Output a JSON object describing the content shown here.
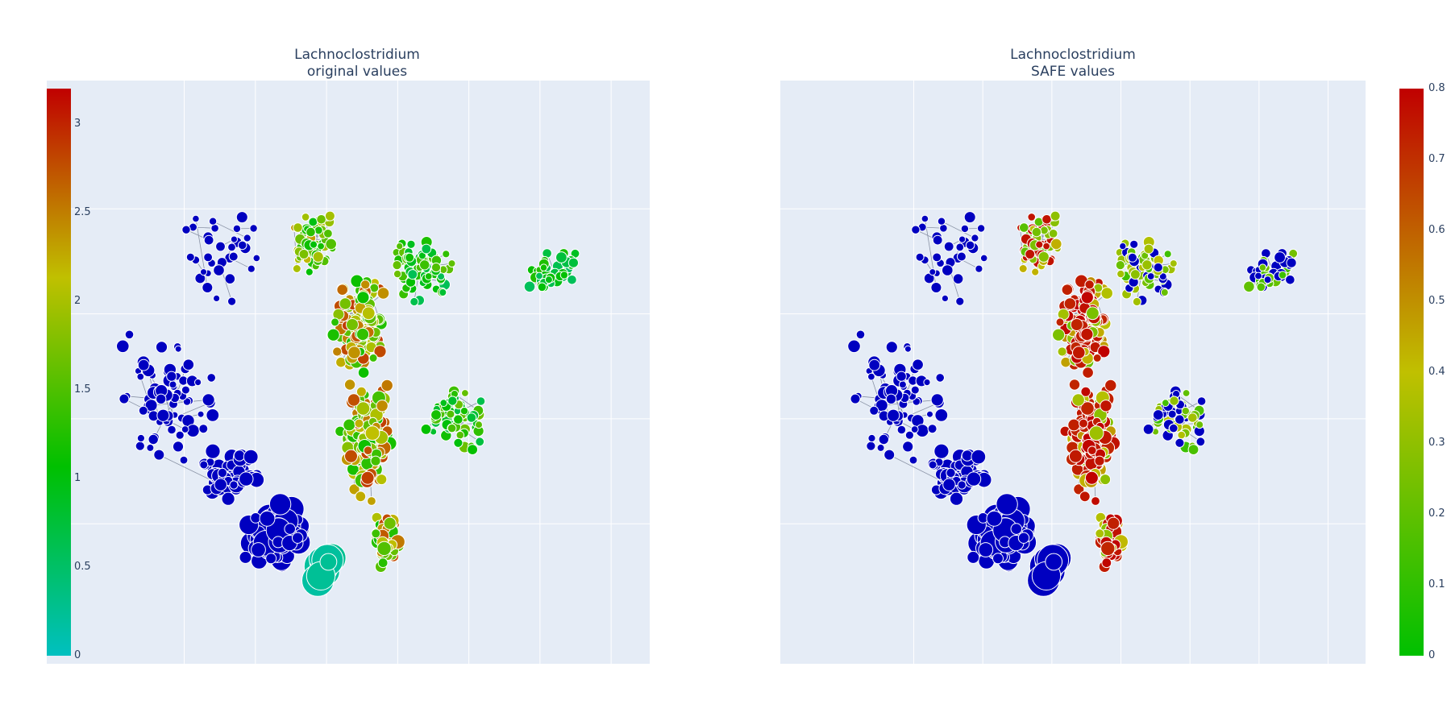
{
  "chart_data": [
    {
      "type": "scatter",
      "subtype": "network",
      "title": "Lachnoclostridium",
      "subtitle": "original values",
      "xlabel": "",
      "ylabel": "",
      "grid": true,
      "colorbar": {
        "placement": "left",
        "range": [
          0,
          3.2
        ],
        "ticks": [
          "0",
          "0.5",
          "1",
          "1.5",
          "2",
          "2.5",
          "3"
        ],
        "tick_values": [
          0,
          0.5,
          1,
          1.5,
          2,
          2.5,
          3
        ],
        "colorscale": [
          "#00c0c0",
          "#00c000",
          "#c0c000",
          "#c00000"
        ]
      },
      "background": "#e5ecf6",
      "node_outline": "#ffffff",
      "zero_color": "#0000c0"
    },
    {
      "type": "scatter",
      "subtype": "network",
      "title": "Lachnoclostridium",
      "subtitle": "SAFE values",
      "xlabel": "",
      "ylabel": "",
      "grid": true,
      "colorbar": {
        "placement": "right",
        "range": [
          0,
          0.8
        ],
        "ticks": [
          "0",
          "0.1",
          "0.2",
          "0.3",
          "0.4",
          "0.5",
          "0.6",
          "0.7",
          "0.8"
        ],
        "tick_values": [
          0,
          0.1,
          0.2,
          0.3,
          0.4,
          0.5,
          0.6,
          0.7,
          0.8
        ],
        "colorscale": [
          "#00c000",
          "#c0c000",
          "#c00000"
        ]
      },
      "background": "#e5ecf6",
      "node_outline": "#ffffff",
      "zero_color": "#0000c0"
    }
  ]
}
